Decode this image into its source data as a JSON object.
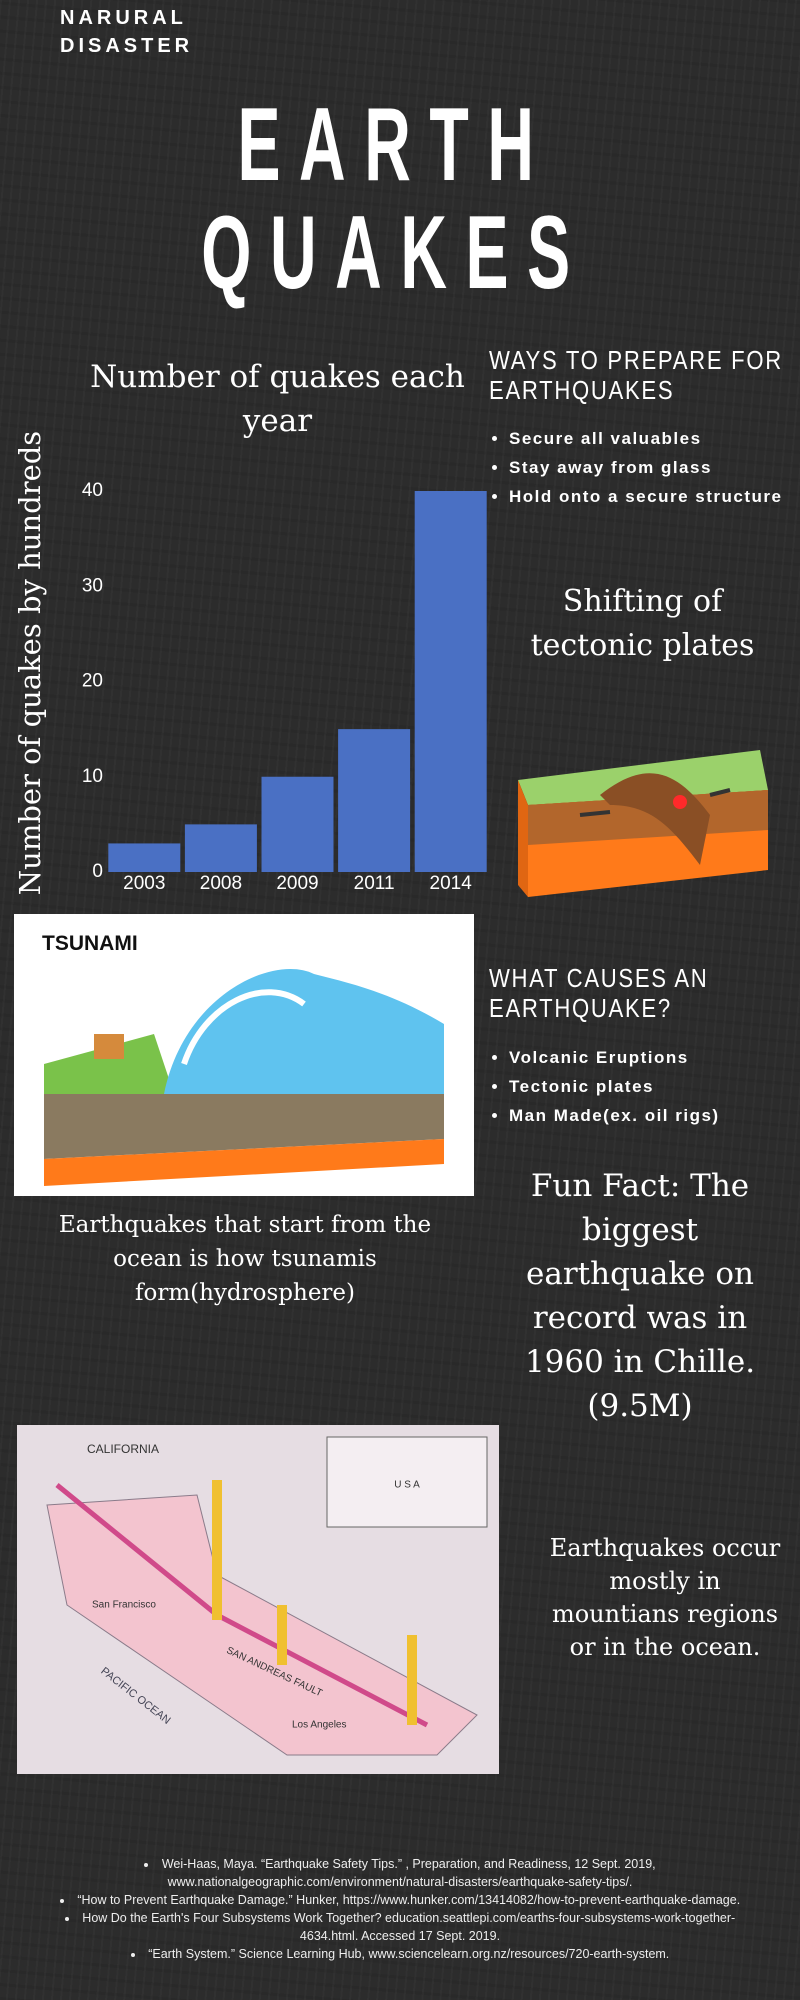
{
  "header": {
    "kicker": "NARURAL DISASTER",
    "title_line1": "EARTH",
    "title_line2": "QUAKES"
  },
  "chart_data": {
    "type": "bar",
    "title": "Number of quakes each year",
    "y_label": "Number of quakes by hundreds",
    "categories": [
      "2003",
      "2008",
      "2009",
      "2011",
      "2014"
    ],
    "values": [
      3,
      5,
      10,
      15,
      40
    ],
    "color": "#4a70c4",
    "ylim": [
      0,
      40
    ],
    "yticks": [
      0,
      10,
      20,
      30,
      40
    ],
    "grid": false
  },
  "prepare": {
    "heading": "WAYS TO PREPARE FOR EARTHQUAKES",
    "items": [
      "Secure all valuables",
      "Stay away from glass",
      "Hold onto a secure structure"
    ]
  },
  "tectonic": {
    "caption": "Shifting of tectonic plates"
  },
  "tsunami": {
    "image_label": "TSUNAMI",
    "caption": "Earthquakes that start from the ocean is how tsunamis form(hydrosphere)"
  },
  "causes": {
    "heading": "WHAT CAUSES AN EARTHQUAKE?",
    "items": [
      "Volcanic Eruptions",
      "Tectonic plates",
      "Man Made(ex. oil rigs)"
    ]
  },
  "fun_fact": {
    "text": "Fun Fact: The biggest earthquake on record was in 1960 in Chille. (9.5M)"
  },
  "map": {
    "state": "CALIFORNIA",
    "ocean": "PACIFIC OCEAN",
    "fault": "SAN ANDREAS FAULT",
    "country": "U S A",
    "city1": "San Francisco",
    "city2": "Los Angeles"
  },
  "regions": {
    "text": "Earthquakes occur mostly in mountians regions or in the ocean."
  },
  "references": [
    "Wei-Haas, Maya. “Earthquake Safety Tips.” , Preparation, and Readiness, 12 Sept. 2019, www.nationalgeographic.com/environment/natural-disasters/earthquake-safety-tips/.",
    "“How to Prevent Earthquake Damage.” Hunker, https://www.hunker.com/13414082/how-to-prevent-earthquake-damage.",
    "How Do the Earth's Four Subsystems Work Together? education.seattlepi.com/earths-four-subsystems-work-together-4634.html. Accessed 17 Sept. 2019.",
    "“Earth System.” Science Learning Hub, www.sciencelearn.org.nz/resources/720-earth-system."
  ]
}
